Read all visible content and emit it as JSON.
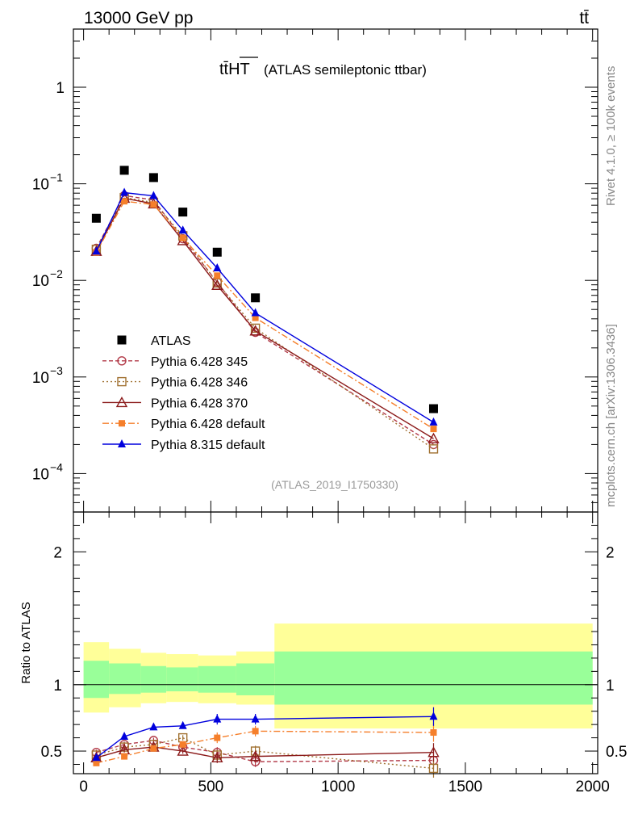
{
  "header": {
    "energy_label": "13000 GeV pp",
    "process_label": "tt̄"
  },
  "side_labels": {
    "rivet": "Rivet 4.1.0, ≥ 100k events",
    "mcplots": "mcplots.cern.ch [arXiv:1306.3436]"
  },
  "chart_data": {
    "type": "line",
    "title_main": "tt̄HT",
    "title_sub": "(ATLAS semileptonic ttbar)",
    "analysis_label": "(ATLAS_2019_I1750330)",
    "x": [
      50,
      160,
      275,
      390,
      525,
      675,
      1375
    ],
    "x_bin_edges": [
      0,
      100,
      225,
      325,
      450,
      600,
      750,
      2000
    ],
    "xlim": [
      -40,
      2020
    ],
    "x_ticks": [
      0,
      500,
      1000,
      1500,
      2000
    ],
    "x_tick_labels": [
      "0",
      "500",
      "1000",
      "1500",
      "2000"
    ],
    "main_ylim": [
      4e-05,
      4
    ],
    "main_yscale": "log",
    "main_y_ticks": [
      0.0001,
      0.001,
      0.01,
      0.1,
      1
    ],
    "main_y_tick_labels": [
      "10^-4",
      "10^-3",
      "10^-2",
      "10^-1",
      "1"
    ],
    "ratio_ylabel": "Ratio to ATLAS",
    "ratio_ylim": [
      0.33,
      2.3
    ],
    "ratio_y_ticks": [
      0.5,
      1,
      2
    ],
    "ratio_y_tick_labels": [
      "0.5",
      "1",
      "2"
    ],
    "data": {
      "name": "ATLAS",
      "color": "#000000",
      "values": [
        0.044,
        0.138,
        0.116,
        0.051,
        0.0196,
        0.0066,
        0.00047
      ]
    },
    "bands": {
      "inner_color": "#99ff99",
      "outer_color": "#ffff99",
      "inner": [
        [
          0.9,
          1.18
        ],
        [
          0.93,
          1.16
        ],
        [
          0.94,
          1.14
        ],
        [
          0.95,
          1.13
        ],
        [
          0.94,
          1.14
        ],
        [
          0.92,
          1.16
        ],
        [
          0.85,
          1.25
        ]
      ],
      "outer": [
        [
          0.79,
          1.32
        ],
        [
          0.83,
          1.27
        ],
        [
          0.86,
          1.24
        ],
        [
          0.87,
          1.23
        ],
        [
          0.86,
          1.22
        ],
        [
          0.85,
          1.25
        ],
        [
          0.67,
          1.46
        ]
      ]
    },
    "series": [
      {
        "name": "Pythia 6.428 345",
        "color": "#b23a48",
        "dash": "5,3",
        "marker": "circle-open",
        "values": [
          0.0215,
          0.0755,
          0.068,
          0.027,
          0.0096,
          0.0029,
          0.0002
        ],
        "ratio": [
          0.49,
          0.55,
          0.58,
          0.53,
          0.49,
          0.42,
          0.43
        ]
      },
      {
        "name": "Pythia 6.428 346",
        "color": "#a07030",
        "dash": "2,3",
        "marker": "square-open",
        "values": [
          0.021,
          0.072,
          0.064,
          0.029,
          0.0094,
          0.0032,
          0.00018
        ],
        "ratio": [
          0.47,
          0.53,
          0.55,
          0.6,
          0.47,
          0.5,
          0.37
        ]
      },
      {
        "name": "Pythia 6.428 370",
        "color": "#8b1a1a",
        "dash": "",
        "marker": "triangle-open",
        "values": [
          0.02,
          0.071,
          0.062,
          0.0258,
          0.0089,
          0.003,
          0.00023
        ],
        "ratio": [
          0.45,
          0.51,
          0.53,
          0.5,
          0.45,
          0.46,
          0.49
        ]
      },
      {
        "name": "Pythia 6.428 default",
        "color": "#f57f2b",
        "dash": "8,3,2,3",
        "marker": "square-filled",
        "values": [
          0.0195,
          0.066,
          0.061,
          0.0275,
          0.0112,
          0.0041,
          0.00029
        ],
        "ratio": [
          0.41,
          0.46,
          0.52,
          0.55,
          0.6,
          0.65,
          0.64
        ]
      },
      {
        "name": "Pythia 8.315 default",
        "color": "#0000dd",
        "dash": "",
        "marker": "triangle-filled",
        "values": [
          0.02,
          0.081,
          0.075,
          0.033,
          0.0134,
          0.0046,
          0.00034
        ],
        "ratio": [
          0.45,
          0.61,
          0.68,
          0.69,
          0.74,
          0.74,
          0.76
        ]
      }
    ]
  }
}
